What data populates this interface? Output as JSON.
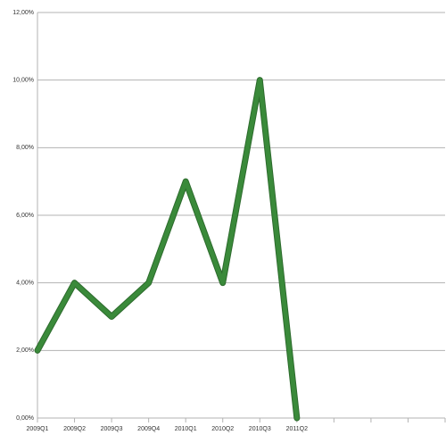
{
  "chart_data": {
    "type": "line",
    "categories": [
      "2009Q1",
      "2009Q2",
      "2009Q3",
      "2009Q4",
      "2010Q1",
      "2010Q2",
      "2010Q3",
      "2011Q2",
      null,
      null,
      null,
      null
    ],
    "series": [
      {
        "color": "#3a8a3a",
        "values": [
          2,
          4,
          3,
          4,
          7,
          4,
          10,
          0,
          null,
          null,
          null,
          null
        ]
      }
    ],
    "ylim": [
      0,
      12
    ],
    "yticks": [
      {
        "value": 0,
        "label": "0,00%"
      },
      {
        "value": 2,
        "label": "2,00%"
      },
      {
        "value": 4,
        "label": "4,00%"
      },
      {
        "value": 6,
        "label": "6,00%"
      },
      {
        "value": 8,
        "label": "8,00%"
      },
      {
        "value": 10,
        "label": "10,00%"
      },
      {
        "value": 12,
        "label": "12,00%"
      }
    ],
    "grid": true
  }
}
